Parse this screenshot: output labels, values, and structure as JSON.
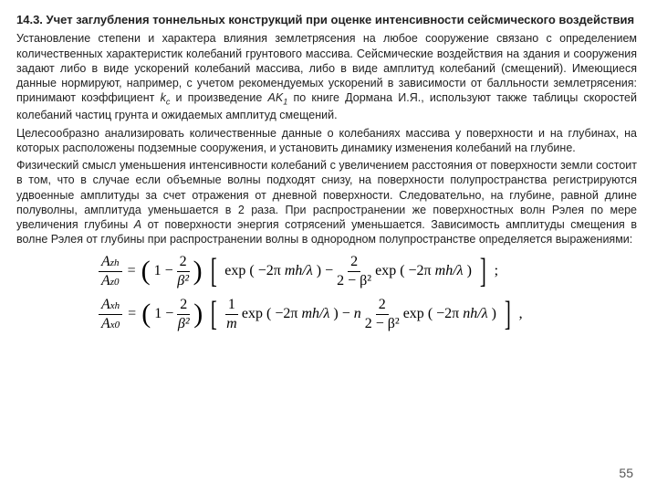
{
  "section": {
    "number": "14.3.",
    "title": "Учет заглубления тоннельных конструкций при оценке интенсивности сейсмического воздействия"
  },
  "paragraphs": {
    "p1a": "Установление степени и характера влияния землетрясения на любое сооружение связано с определением количественных характеристик колебаний грунтового массива. Сейсмические воздействия на здания и сооружения задают либо в виде ускорений колебаний массива, либо в виде амплитуд колебаний (смещений). Имеющиеся данные нормируют, например, с учетом рекомендуемых ускорений в зависимости от балльности землетрясения: принимают коэффициент ",
    "p1b": " и произведение ",
    "p1c": " по книге Дормана И.Я., используют также таблицы скоростей колебаний частиц грунта и ожидаемых амплитуд смещений.",
    "p2": "Целесообразно анализировать количественные данные о колебаниях массива у поверхности и на глубинах, на которых расположены подземные сооружения, и установить динамику изменения колебаний на глубине.",
    "p3a": "Физический смысл уменьшения интенсивности колебаний с увеличением расстояния от поверхности земли состоит в том, что в случае если объемные волны подходят снизу, на поверхности полупространства регистрируются удвоенные амплитуды за счет отражения от дневной поверхности. Следовательно, на глубине, равной длине полуволны, амплитуда уменьшается в 2 раза. При распространении же поверхностных волн Рэлея по мере увеличения глубины ",
    "p3b": " от поверхности энергия сотрясений уменьшается. Зависимость амплитуды смещения в волне Рэлея от глубины при распространении волны в однородном полупространстве определяется выражениями:"
  },
  "symbols": {
    "kc_k": "k",
    "kc_c": "c",
    "AK1_AK": "AK",
    "AK1_1": "1",
    "A": "A"
  },
  "formula": {
    "Azh": "A",
    "zh": "zh",
    "Az0": "A",
    "z0": "z0",
    "Axh": "A",
    "xh": "xh",
    "Ax0": "A",
    "x0": "x0",
    "eq": "=",
    "lpar": "(",
    "rpar": ")",
    "one": "1",
    "minus": "−",
    "two": "2",
    "beta2": "β²",
    "exp": "exp",
    "neg2pi": "−2π",
    "mh_l": " mh/λ",
    "nh_l": " nh/λ",
    "frac2": "2",
    "den2mb2": "2 − β²",
    "semicolon": ";",
    "comma": ",",
    "oneoverm_num": "1",
    "oneoverm_den": "m",
    "n": "n"
  },
  "pagenum": "55"
}
